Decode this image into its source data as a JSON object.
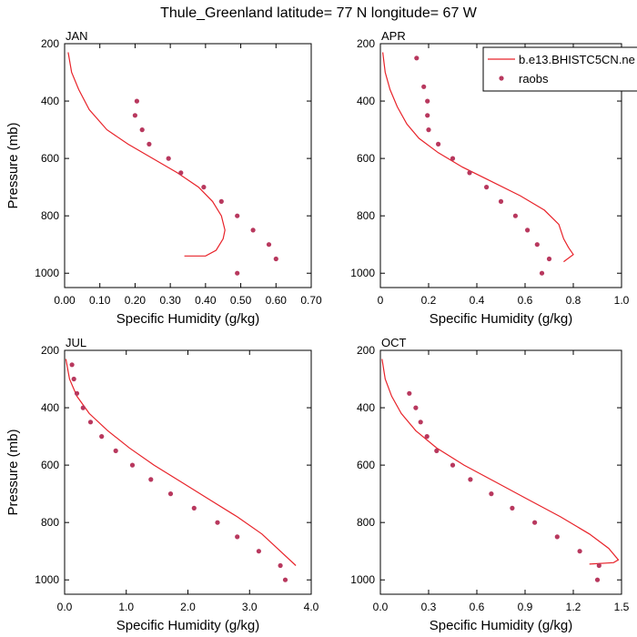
{
  "figure": {
    "title": "Thule_Greenland  latitude= 77 N longitude= 67 W"
  },
  "legend": {
    "placement": "top-right of APR panel",
    "entries": [
      {
        "label": "b.e13.BHISTC5CN.ne",
        "type": "line",
        "color": "#e8232a"
      },
      {
        "label": "raobs",
        "type": "marker",
        "color": "#b8385e"
      }
    ]
  },
  "chart_data": [
    {
      "type": "line",
      "panel": "JAN",
      "xlabel": "Specific Humidity (g/kg)",
      "ylabel": "Pressure (mb)",
      "xlim": [
        0,
        0.7
      ],
      "ylim": [
        200,
        1050
      ],
      "y_inverted": true,
      "xticks": [
        "0.00",
        "0.10",
        "0.20",
        "0.30",
        "0.40",
        "0.50",
        "0.60",
        "0.70"
      ],
      "yticks": [
        "200",
        "400",
        "600",
        "800",
        "1000"
      ],
      "series": [
        {
          "name": "b.e13.BHISTC5CN.ne",
          "kind": "line",
          "color": "#e8232a",
          "x": [
            0.01,
            0.02,
            0.04,
            0.07,
            0.12,
            0.18,
            0.25,
            0.32,
            0.38,
            0.42,
            0.445,
            0.455,
            0.45,
            0.43,
            0.4,
            0.34
          ],
          "y": [
            230,
            300,
            360,
            430,
            500,
            550,
            600,
            650,
            700,
            750,
            800,
            850,
            880,
            920,
            940,
            940
          ]
        },
        {
          "name": "raobs",
          "kind": "scatter",
          "color": "#b8385e",
          "x": [
            0.205,
            0.2,
            0.22,
            0.24,
            0.295,
            0.33,
            0.395,
            0.445,
            0.49,
            0.535,
            0.58,
            0.6,
            0.49
          ],
          "y": [
            400,
            450,
            500,
            550,
            600,
            650,
            700,
            750,
            800,
            850,
            900,
            950,
            1000
          ]
        }
      ]
    },
    {
      "type": "line",
      "panel": "APR",
      "xlabel": "Specific Humidity (g/kg)",
      "ylabel": "",
      "xlim": [
        0,
        1.0
      ],
      "ylim": [
        200,
        1050
      ],
      "y_inverted": true,
      "xticks": [
        "0",
        "0.2",
        "0.4",
        "0.6",
        "0.8",
        "1.0"
      ],
      "yticks": [
        "200",
        "400",
        "600",
        "800",
        "1000"
      ],
      "series": [
        {
          "name": "b.e13.BHISTC5CN.ne",
          "kind": "line",
          "color": "#e8232a",
          "x": [
            0.01,
            0.02,
            0.04,
            0.07,
            0.11,
            0.16,
            0.24,
            0.34,
            0.46,
            0.58,
            0.68,
            0.74,
            0.76,
            0.78,
            0.8,
            0.76
          ],
          "y": [
            230,
            300,
            360,
            420,
            480,
            530,
            580,
            630,
            680,
            730,
            780,
            830,
            880,
            910,
            935,
            960
          ]
        },
        {
          "name": "raobs",
          "kind": "scatter",
          "color": "#b8385e",
          "x": [
            0.15,
            0.18,
            0.195,
            0.195,
            0.2,
            0.24,
            0.3,
            0.37,
            0.44,
            0.5,
            0.56,
            0.61,
            0.65,
            0.7,
            0.67
          ],
          "y": [
            250,
            350,
            400,
            450,
            500,
            550,
            600,
            650,
            700,
            750,
            800,
            850,
            900,
            950,
            1000
          ]
        }
      ]
    },
    {
      "type": "line",
      "panel": "JUL",
      "xlabel": "Specific Humidity (g/kg)",
      "ylabel": "Pressure (mb)",
      "xlim": [
        0,
        4.0
      ],
      "ylim": [
        200,
        1050
      ],
      "y_inverted": true,
      "xticks": [
        "0.0",
        "1.0",
        "2.0",
        "3.0",
        "4.0"
      ],
      "yticks": [
        "200",
        "400",
        "600",
        "800",
        "1000"
      ],
      "series": [
        {
          "name": "b.e13.BHISTC5CN.ne",
          "kind": "line",
          "color": "#e8232a",
          "x": [
            0.02,
            0.08,
            0.2,
            0.4,
            0.7,
            1.05,
            1.45,
            1.9,
            2.35,
            2.8,
            3.2,
            3.5,
            3.75
          ],
          "y": [
            230,
            300,
            360,
            420,
            480,
            540,
            600,
            660,
            720,
            780,
            840,
            900,
            950
          ]
        },
        {
          "name": "raobs",
          "kind": "scatter",
          "color": "#b8385e",
          "x": [
            0.12,
            0.15,
            0.2,
            0.3,
            0.42,
            0.6,
            0.83,
            1.1,
            1.4,
            1.72,
            2.1,
            2.48,
            2.8,
            3.15,
            3.5,
            3.58
          ],
          "y": [
            250,
            300,
            350,
            400,
            450,
            500,
            550,
            600,
            650,
            700,
            750,
            800,
            850,
            900,
            950,
            1000
          ]
        }
      ]
    },
    {
      "type": "line",
      "panel": "OCT",
      "xlabel": "Specific Humidity (g/kg)",
      "ylabel": "",
      "xlim": [
        0,
        1.5
      ],
      "ylim": [
        200,
        1050
      ],
      "y_inverted": true,
      "xticks": [
        "0.0",
        "0.3",
        "0.6",
        "0.9",
        "1.2",
        "1.5"
      ],
      "yticks": [
        "200",
        "400",
        "600",
        "800",
        "1000"
      ],
      "series": [
        {
          "name": "b.e13.BHISTC5CN.ne",
          "kind": "line",
          "color": "#e8232a",
          "x": [
            0.01,
            0.03,
            0.07,
            0.13,
            0.22,
            0.35,
            0.52,
            0.72,
            0.92,
            1.12,
            1.3,
            1.42,
            1.48,
            1.45,
            1.3
          ],
          "y": [
            230,
            300,
            360,
            420,
            480,
            540,
            600,
            660,
            720,
            780,
            840,
            890,
            930,
            940,
            945
          ]
        },
        {
          "name": "raobs",
          "kind": "scatter",
          "color": "#b8385e",
          "x": [
            0.18,
            0.22,
            0.25,
            0.29,
            0.35,
            0.45,
            0.56,
            0.69,
            0.82,
            0.96,
            1.1,
            1.24,
            1.36,
            1.35
          ],
          "y": [
            350,
            400,
            450,
            500,
            550,
            600,
            650,
            700,
            750,
            800,
            850,
            900,
            950,
            1000
          ]
        }
      ]
    }
  ]
}
